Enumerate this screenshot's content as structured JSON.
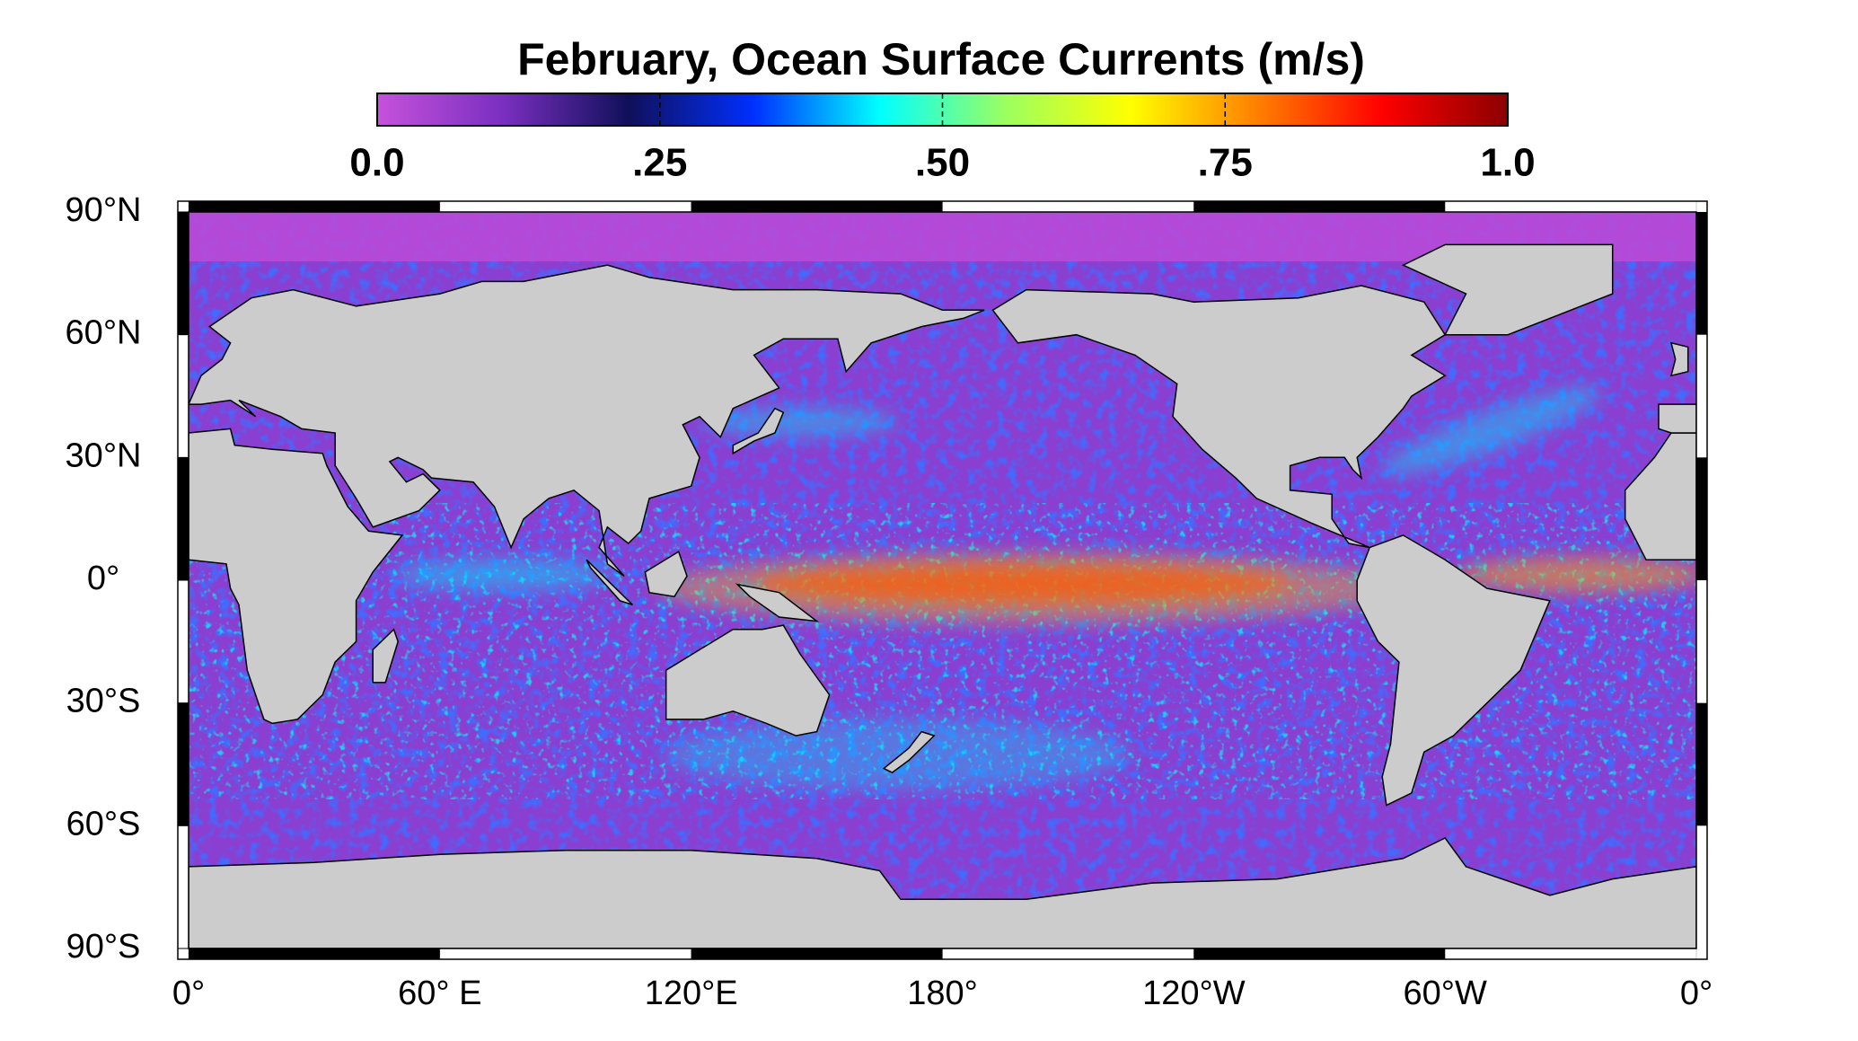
{
  "title": "February, Ocean Surface Currents (m/s)",
  "colorbar": {
    "lim": [
      0,
      1
    ],
    "ticks": [
      {
        "value": 0,
        "label": "0.0"
      },
      {
        "value": 0.25,
        "label": ".25"
      },
      {
        "value": 0.5,
        "label": ".50"
      },
      {
        "value": 0.75,
        "label": ".75"
      },
      {
        "value": 1,
        "label": "1.0"
      }
    ],
    "colors": [
      "#c652dc",
      "#7a2fc0",
      "#10105a",
      "#0030ff",
      "#00ffff",
      "#9bff60",
      "#ffff00",
      "#ff8000",
      "#ff0000",
      "#8b0000"
    ]
  },
  "map": {
    "lonlim": [
      0,
      360
    ],
    "latlim": [
      -90,
      90
    ],
    "lon_ticks": [
      {
        "value": 0,
        "label": "0°"
      },
      {
        "value": 60,
        "label": "60° E"
      },
      {
        "value": 120,
        "label": "120°E"
      },
      {
        "value": 180,
        "label": "180°"
      },
      {
        "value": 240,
        "label": "120°W"
      },
      {
        "value": 300,
        "label": "60°W"
      },
      {
        "value": 360,
        "label": "0°"
      }
    ],
    "lat_ticks": [
      {
        "value": 90,
        "label": "90°N"
      },
      {
        "value": 60,
        "label": "60°N"
      },
      {
        "value": 30,
        "label": "30°N"
      },
      {
        "value": 0,
        "label": "0°"
      },
      {
        "value": -30,
        "label": "30°S"
      },
      {
        "value": -60,
        "label": "60°S"
      },
      {
        "value": -90,
        "label": "90°S"
      }
    ],
    "land_color": "#cccccc",
    "ocean_color": "#8a3fd0"
  }
}
